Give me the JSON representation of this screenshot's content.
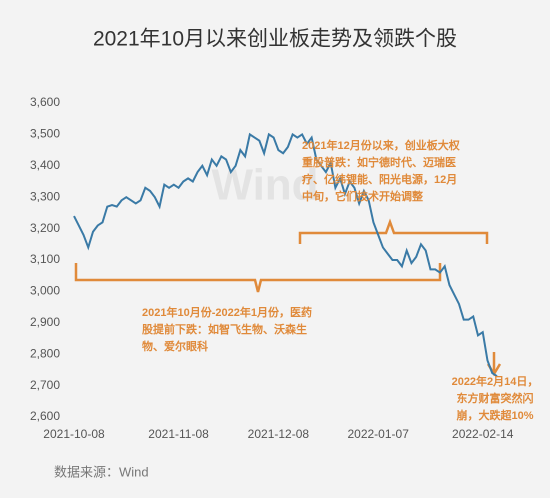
{
  "chart_data": {
    "type": "line",
    "title": "2021年10月以来创业板走势及领跌个股",
    "source": "数据来源：Wind",
    "watermark": "Wind",
    "categories": [
      "2021-10-08",
      null,
      null,
      null,
      null,
      null,
      null,
      null,
      null,
      null,
      null,
      null,
      null,
      null,
      null,
      null,
      null,
      null,
      null,
      null,
      null,
      null,
      "2021-11-08",
      null,
      null,
      null,
      null,
      null,
      null,
      null,
      null,
      null,
      null,
      null,
      null,
      null,
      null,
      null,
      null,
      null,
      null,
      null,
      null,
      "2021-12-08",
      null,
      null,
      null,
      null,
      null,
      null,
      null,
      null,
      null,
      null,
      null,
      null,
      null,
      null,
      null,
      null,
      null,
      null,
      null,
      null,
      "2022-01-07",
      null,
      null,
      null,
      null,
      null,
      null,
      null,
      null,
      null,
      null,
      null,
      null,
      null,
      null,
      null,
      null,
      null,
      null,
      null,
      null,
      null,
      "2022-02-14",
      null,
      null,
      null
    ],
    "values": [
      3240,
      3210,
      3180,
      3140,
      3190,
      3210,
      3220,
      3270,
      3275,
      3270,
      3290,
      3300,
      3290,
      3280,
      3290,
      3330,
      3320,
      3300,
      3270,
      3340,
      3330,
      3340,
      3330,
      3350,
      3360,
      3350,
      3380,
      3400,
      3370,
      3420,
      3400,
      3430,
      3420,
      3380,
      3400,
      3450,
      3430,
      3500,
      3490,
      3480,
      3440,
      3500,
      3490,
      3450,
      3440,
      3460,
      3500,
      3490,
      3500,
      3470,
      3490,
      3420,
      3400,
      3380,
      3410,
      3330,
      3360,
      3310,
      3350,
      3330,
      3280,
      3320,
      3290,
      3220,
      3180,
      3140,
      3120,
      3100,
      3100,
      3080,
      3130,
      3090,
      3110,
      3150,
      3130,
      3070,
      3070,
      3060,
      3080,
      3020,
      2990,
      2960,
      2910,
      2910,
      2920,
      2860,
      2870,
      2780,
      2740,
      2730
    ],
    "color": "#3a7aa6",
    "ylim": [
      2600,
      3600
    ],
    "yticks": [
      {
        "value": 2600,
        "label": "2,600"
      },
      {
        "value": 2700,
        "label": "2,700"
      },
      {
        "value": 2800,
        "label": "2,800"
      },
      {
        "value": 2900,
        "label": "2,900"
      },
      {
        "value": 3000,
        "label": "3,000"
      },
      {
        "value": 3100,
        "label": "3,100"
      },
      {
        "value": 3200,
        "label": "3,200"
      },
      {
        "value": 3300,
        "label": "3,300"
      },
      {
        "value": 3400,
        "label": "3,400"
      },
      {
        "value": 3500,
        "label": "3,500"
      },
      {
        "value": 3600,
        "label": "3,600"
      }
    ],
    "annotation_color": "#e08a3a",
    "annotations": [
      {
        "lines": [
          "2021年12月份以来，创业板大权",
          "重股普跌：如宁德时代、迈瑞医",
          "疗、亿纬锂能、阳光电源，12月",
          "中旬，它们技术开始调整"
        ]
      },
      {
        "lines": [
          "2021年10月份-2022年1月份，医药",
          "股提前下跌：如智飞生物、沃森生",
          "物、爱尔眼科"
        ]
      },
      {
        "lines": [
          "2022年2月14日，",
          "东方财富突然闪",
          "崩，大跌超10%"
        ]
      }
    ]
  }
}
